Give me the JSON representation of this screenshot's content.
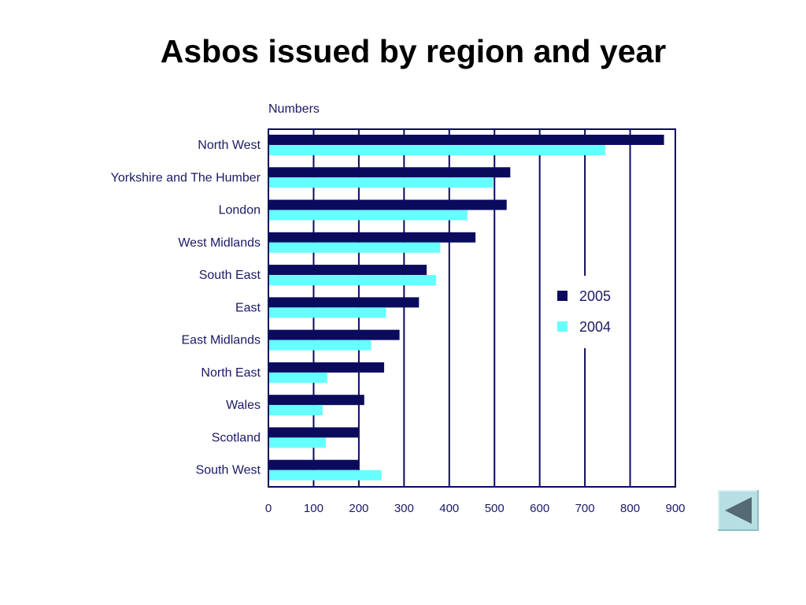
{
  "slide": {
    "title": "Asbos issued by region and year"
  },
  "colors": {
    "series_2005": "#0b0b5e",
    "series_2004": "#66ffff",
    "axis": "#0b0b5e",
    "back_button": "#b7dfe3",
    "back_arrow": "#556a74"
  },
  "back_button": {
    "icon": "triangle-left-icon"
  },
  "chart_data": {
    "type": "bar",
    "orientation": "horizontal",
    "title": "Asbos issued by region and year",
    "xlabel": "",
    "ylabel": "",
    "axis_caption": "Numbers",
    "xlim": [
      0,
      900
    ],
    "xticks": [
      0,
      100,
      200,
      300,
      400,
      500,
      600,
      700,
      800,
      900
    ],
    "grid": "vertical",
    "legend_position": "right",
    "categories": [
      "North West",
      "Yorkshire and The Humber",
      "London",
      "West Midlands",
      "South East",
      "East",
      "East Midlands",
      "North East",
      "Wales",
      "Scotland",
      "South West"
    ],
    "series": [
      {
        "name": "2005",
        "values": [
          875,
          535,
          527,
          458,
          350,
          333,
          290,
          256,
          212,
          200,
          200
        ]
      },
      {
        "name": "2004",
        "values": [
          745,
          497,
          440,
          380,
          371,
          260,
          227,
          130,
          120,
          127,
          250
        ]
      }
    ]
  }
}
